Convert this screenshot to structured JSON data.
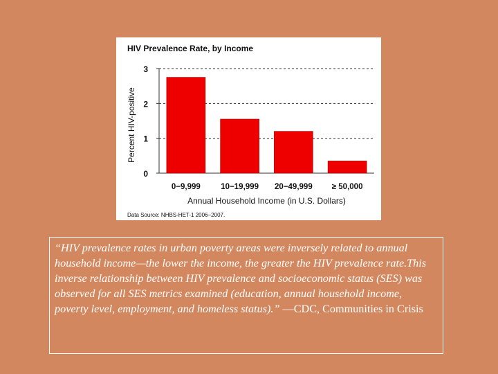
{
  "chart_data": {
    "type": "bar",
    "title": "HIV Prevalence Rate, by Income",
    "categories": [
      "0−9,999",
      "10−19,999",
      "20−49,999",
      "≥ 50,000"
    ],
    "values": [
      2.75,
      1.55,
      1.2,
      0.35
    ],
    "xlabel": "Annual Household Income (in U.S. Dollars)",
    "ylabel": "Percent HIV-positive",
    "ylim": [
      0,
      3
    ],
    "yticks": [
      "0",
      "1",
      "2",
      "3"
    ],
    "grid": "horizontal dashed",
    "bar_color": "#ee0000",
    "source": "Data Source: NHBS-HET-1 2006−2007."
  },
  "quote": {
    "text": "“HIV prevalence rates in urban poverty areas were inversely related to annual household income—the lower the income, the greater the HIV prevalence rate.This inverse relationship between HIV prevalence and socioeconomic status (SES) was observed for all SES metrics examined (education, annual household income, poverty level, employment, and homeless status).”",
    "attribution": " —CDC, Communities in Crisis"
  },
  "colors": {
    "background": "#d3875f",
    "panel": "#ffffff",
    "text": "#ffffff"
  }
}
